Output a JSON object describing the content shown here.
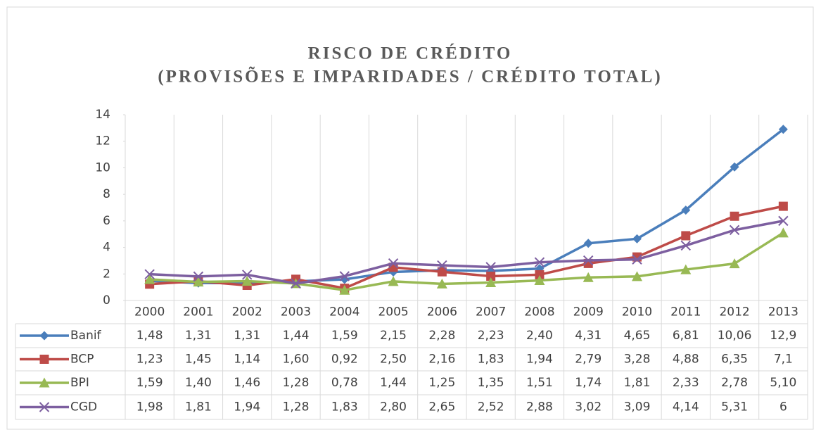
{
  "chart_data": {
    "type": "line",
    "title": "RISCO DE CRÉDITO",
    "subtitle": "(PROVISÕES E IMPARIDADES / CRÉDITO TOTAL)",
    "categories": [
      "2000",
      "2001",
      "2002",
      "2003",
      "2004",
      "2005",
      "2006",
      "2007",
      "2008",
      "2009",
      "2010",
      "2011",
      "2012",
      "2013"
    ],
    "ylim": [
      0,
      14
    ],
    "yticks": [
      0,
      2,
      4,
      6,
      8,
      10,
      12,
      14
    ],
    "data_table": true,
    "series": [
      {
        "name": "Banif",
        "color": "#4a7ebb",
        "marker": "diamond",
        "values": [
          1.48,
          1.31,
          1.31,
          1.44,
          1.59,
          2.15,
          2.28,
          2.23,
          2.4,
          4.31,
          4.65,
          6.81,
          10.06,
          12.9
        ],
        "value_labels": [
          "1,48",
          "1,31",
          "1,31",
          "1,44",
          "1,59",
          "2,15",
          "2,28",
          "2,23",
          "2,40",
          "4,31",
          "4,65",
          "6,81",
          "10,06",
          "12,9"
        ]
      },
      {
        "name": "BCP",
        "color": "#be4b48",
        "marker": "square",
        "values": [
          1.23,
          1.45,
          1.14,
          1.6,
          0.92,
          2.5,
          2.16,
          1.83,
          1.94,
          2.79,
          3.28,
          4.88,
          6.35,
          7.1
        ],
        "value_labels": [
          "1,23",
          "1,45",
          "1,14",
          "1,60",
          "0,92",
          "2,50",
          "2,16",
          "1,83",
          "1,94",
          "2,79",
          "3,28",
          "4,88",
          "6,35",
          "7,1"
        ]
      },
      {
        "name": "BPI",
        "color": "#98b954",
        "marker": "triangle",
        "values": [
          1.59,
          1.4,
          1.46,
          1.28,
          0.78,
          1.44,
          1.25,
          1.35,
          1.51,
          1.74,
          1.81,
          2.33,
          2.78,
          5.1
        ],
        "value_labels": [
          "1,59",
          "1,40",
          "1,46",
          "1,28",
          "0,78",
          "1,44",
          "1,25",
          "1,35",
          "1,51",
          "1,74",
          "1,81",
          "2,33",
          "2,78",
          "5,10"
        ]
      },
      {
        "name": "CGD",
        "color": "#7d5fa0",
        "marker": "x",
        "values": [
          1.98,
          1.81,
          1.94,
          1.28,
          1.83,
          2.8,
          2.65,
          2.52,
          2.88,
          3.02,
          3.09,
          4.14,
          5.31,
          6
        ],
        "value_labels": [
          "1,98",
          "1,81",
          "1,94",
          "1,28",
          "1,83",
          "2,80",
          "2,65",
          "2,52",
          "2,88",
          "3,02",
          "3,09",
          "4,14",
          "5,31",
          "6"
        ]
      }
    ]
  }
}
